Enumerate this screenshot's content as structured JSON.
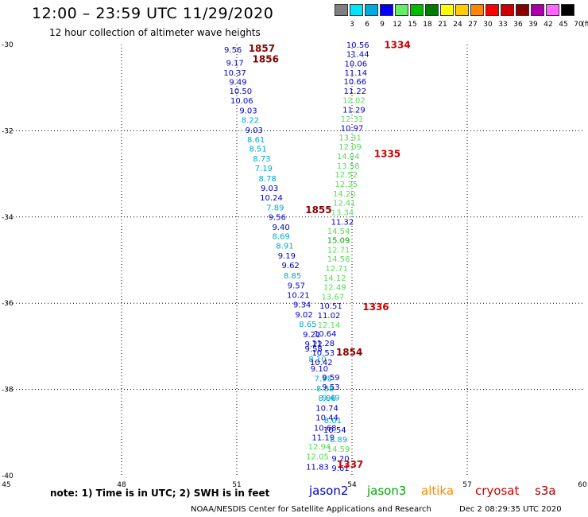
{
  "title": "12:00 – 23:59 UTC 11/29/2020",
  "subtitle": "12 hour collection of altimeter wave heights",
  "legend": {
    "unit": "(ft)",
    "bins": [
      {
        "label": "3",
        "color": "#7f7f7f"
      },
      {
        "label": "6",
        "color": "#00e5ff"
      },
      {
        "label": "9",
        "color": "#00aadd"
      },
      {
        "label": "12",
        "color": "#0000ff"
      },
      {
        "label": "15",
        "color": "#66ee66"
      },
      {
        "label": "18",
        "color": "#00bb00"
      },
      {
        "label": "21",
        "color": "#007a00"
      },
      {
        "label": "24",
        "color": "#ffff00"
      },
      {
        "label": "27",
        "color": "#ffcc00"
      },
      {
        "label": "30",
        "color": "#ff8800"
      },
      {
        "label": "33",
        "color": "#ff0000"
      },
      {
        "label": "36",
        "color": "#cc0000"
      },
      {
        "label": "39",
        "color": "#880000"
      },
      {
        "label": "42",
        "color": "#aa00aa"
      },
      {
        "label": "45",
        "color": "#ff66ff"
      },
      {
        "label": "70",
        "color": "#000000"
      }
    ]
  },
  "axes": {
    "x_ticks": [
      "45",
      "48",
      "51",
      "54",
      "57",
      "60"
    ],
    "y_ticks": [
      "-30",
      "-32",
      "-34",
      "-36",
      "-38",
      "-40"
    ]
  },
  "colors": {
    "jason2": "#0000cc",
    "jason3": "#00aa00",
    "altika": "#ff8800",
    "cryosat": "#cc0000",
    "s3a": "#aa0000",
    "light": "#00aacc",
    "green": "#55dd55",
    "maroon": "#880000"
  },
  "points": [
    {
      "t": "9.56",
      "lon": 50.9,
      "lat": -30.13,
      "c": "jason2"
    },
    {
      "t": "9.17",
      "lon": 50.95,
      "lat": -30.43,
      "c": "jason2"
    },
    {
      "t": "10.37",
      "lon": 50.95,
      "lat": -30.66,
      "c": "jason2"
    },
    {
      "t": "9.49",
      "lon": 51.03,
      "lat": -30.88,
      "c": "jason2"
    },
    {
      "t": "10.50",
      "lon": 51.1,
      "lat": -31.09,
      "c": "jason2"
    },
    {
      "t": "10.06",
      "lon": 51.13,
      "lat": -31.31,
      "c": "jason2"
    },
    {
      "t": "9.03",
      "lon": 51.3,
      "lat": -31.54,
      "c": "jason2"
    },
    {
      "t": "8.22",
      "lon": 51.35,
      "lat": -31.76,
      "c": "light"
    },
    {
      "t": "9.03",
      "lon": 51.45,
      "lat": -31.99,
      "c": "jason2"
    },
    {
      "t": "8.61",
      "lon": 51.5,
      "lat": -32.21,
      "c": "light"
    },
    {
      "t": "8.51",
      "lon": 51.55,
      "lat": -32.43,
      "c": "light"
    },
    {
      "t": "8.73",
      "lon": 51.65,
      "lat": -32.66,
      "c": "light"
    },
    {
      "t": "7.19",
      "lon": 51.7,
      "lat": -32.88,
      "c": "light"
    },
    {
      "t": "8.78",
      "lon": 51.8,
      "lat": -33.12,
      "c": "light"
    },
    {
      "t": "9.03",
      "lon": 51.85,
      "lat": -33.34,
      "c": "jason2"
    },
    {
      "t": "10.24",
      "lon": 51.9,
      "lat": -33.56,
      "c": "jason2"
    },
    {
      "t": "7.89",
      "lon": 52.0,
      "lat": -33.79,
      "c": "light"
    },
    {
      "t": "9.56",
      "lon": 52.05,
      "lat": -34.01,
      "c": "jason2"
    },
    {
      "t": "9.40",
      "lon": 52.15,
      "lat": -34.24,
      "c": "jason2"
    },
    {
      "t": "8.69",
      "lon": 52.15,
      "lat": -34.46,
      "c": "light"
    },
    {
      "t": "8.91",
      "lon": 52.25,
      "lat": -34.68,
      "c": "light"
    },
    {
      "t": "9.19",
      "lon": 52.3,
      "lat": -34.91,
      "c": "jason2"
    },
    {
      "t": "9.62",
      "lon": 52.4,
      "lat": -35.13,
      "c": "jason2"
    },
    {
      "t": "8.85",
      "lon": 52.45,
      "lat": -35.37,
      "c": "light"
    },
    {
      "t": "9.57",
      "lon": 52.55,
      "lat": -35.6,
      "c": "jason2"
    },
    {
      "t": "10.21",
      "lon": 52.6,
      "lat": -35.82,
      "c": "jason2"
    },
    {
      "t": "9.34",
      "lon": 52.7,
      "lat": -36.04,
      "c": "jason2"
    },
    {
      "t": "9.02",
      "lon": 52.75,
      "lat": -36.27,
      "c": "jason2"
    },
    {
      "t": "8.65",
      "lon": 52.85,
      "lat": -36.49,
      "c": "light"
    },
    {
      "t": "9.21",
      "lon": 52.95,
      "lat": -36.73,
      "c": "jason2"
    },
    {
      "t": "9.22",
      "lon": 53.0,
      "lat": -36.96,
      "c": "jason2"
    },
    {
      "t": "9.58",
      "lon": 53.0,
      "lat": -37.07,
      "c": "jason2"
    },
    {
      "t": "8.10",
      "lon": 53.1,
      "lat": -37.31,
      "c": "light"
    },
    {
      "t": "9.10",
      "lon": 53.15,
      "lat": -37.53,
      "c": "jason2"
    },
    {
      "t": "7.95",
      "lon": 53.25,
      "lat": -37.76,
      "c": "light"
    },
    {
      "t": "8.88",
      "lon": 53.3,
      "lat": -37.99,
      "c": "light"
    },
    {
      "t": "8.86",
      "lon": 53.35,
      "lat": -38.21,
      "c": "light"
    },
    {
      "t": "10.74",
      "lon": 53.35,
      "lat": -38.44,
      "c": "jason2"
    },
    {
      "t": "10.44",
      "lon": 53.35,
      "lat": -38.66,
      "c": "jason2"
    },
    {
      "t": "10.68",
      "lon": 53.3,
      "lat": -38.9,
      "c": "jason2"
    },
    {
      "t": "11.19",
      "lon": 53.25,
      "lat": -39.12,
      "c": "jason2"
    },
    {
      "t": "12.94",
      "lon": 53.15,
      "lat": -39.34,
      "c": "green"
    },
    {
      "t": "12.05",
      "lon": 53.1,
      "lat": -39.57,
      "c": "green"
    },
    {
      "t": "11.83",
      "lon": 53.1,
      "lat": -39.81,
      "c": "jason2"
    },
    {
      "t": "10.56",
      "lon": 54.15,
      "lat": -30.02,
      "c": "jason2"
    },
    {
      "t": "11.44",
      "lon": 54.15,
      "lat": -30.23,
      "c": "jason2"
    },
    {
      "t": "10.06",
      "lon": 54.1,
      "lat": -30.45,
      "c": "jason2"
    },
    {
      "t": "11.14",
      "lon": 54.1,
      "lat": -30.66,
      "c": "jason2"
    },
    {
      "t": "10.66",
      "lon": 54.08,
      "lat": -30.87,
      "c": "jason2"
    },
    {
      "t": "11.22",
      "lon": 54.08,
      "lat": -31.09,
      "c": "jason2"
    },
    {
      "t": "12.02",
      "lon": 54.05,
      "lat": -31.3,
      "c": "green"
    },
    {
      "t": "11.29",
      "lon": 54.05,
      "lat": -31.52,
      "c": "jason2"
    },
    {
      "t": "12.31",
      "lon": 54.0,
      "lat": -31.73,
      "c": "green"
    },
    {
      "t": "10.97",
      "lon": 54.0,
      "lat": -31.95,
      "c": "jason2"
    },
    {
      "t": "13.31",
      "lon": 53.95,
      "lat": -32.17,
      "c": "green"
    },
    {
      "t": "12.09",
      "lon": 53.95,
      "lat": -32.38,
      "c": "green"
    },
    {
      "t": "14.04",
      "lon": 53.9,
      "lat": -32.6,
      "c": "green"
    },
    {
      "t": "13.58",
      "lon": 53.9,
      "lat": -32.82,
      "c": "green"
    },
    {
      "t": "12.52",
      "lon": 53.85,
      "lat": -33.03,
      "c": "green"
    },
    {
      "t": "12.35",
      "lon": 53.85,
      "lat": -33.25,
      "c": "green"
    },
    {
      "t": "14.20",
      "lon": 53.8,
      "lat": -33.47,
      "c": "green"
    },
    {
      "t": "12.41",
      "lon": 53.8,
      "lat": -33.68,
      "c": "green"
    },
    {
      "t": "13.34",
      "lon": 53.75,
      "lat": -33.9,
      "c": "green"
    },
    {
      "t": "11.32",
      "lon": 53.75,
      "lat": -34.12,
      "c": "jason2"
    },
    {
      "t": "14.54",
      "lon": 53.65,
      "lat": -34.34,
      "c": "green"
    },
    {
      "t": "15.09",
      "lon": 53.65,
      "lat": -34.55,
      "c": "jason3"
    },
    {
      "t": "12.71",
      "lon": 53.65,
      "lat": -34.77,
      "c": "green"
    },
    {
      "t": "14.56",
      "lon": 53.65,
      "lat": -34.98,
      "c": "green"
    },
    {
      "t": "12.71",
      "lon": 53.6,
      "lat": -35.2,
      "c": "green"
    },
    {
      "t": "14.12",
      "lon": 53.55,
      "lat": -35.42,
      "c": "green"
    },
    {
      "t": "12.49",
      "lon": 53.55,
      "lat": -35.64,
      "c": "green"
    },
    {
      "t": "13.67",
      "lon": 53.5,
      "lat": -35.86,
      "c": "green"
    },
    {
      "t": "10.51",
      "lon": 53.45,
      "lat": -36.07,
      "c": "jason2"
    },
    {
      "t": "11.02",
      "lon": 53.4,
      "lat": -36.29,
      "c": "jason2"
    },
    {
      "t": "12.14",
      "lon": 53.4,
      "lat": -36.51,
      "c": "green"
    },
    {
      "t": "10.64",
      "lon": 53.3,
      "lat": -36.72,
      "c": "jason2"
    },
    {
      "t": "11.28",
      "lon": 53.25,
      "lat": -36.94,
      "c": "jason2"
    },
    {
      "t": "10.53",
      "lon": 53.25,
      "lat": -37.16,
      "c": "jason2"
    },
    {
      "t": "10.42",
      "lon": 53.2,
      "lat": -37.38,
      "c": "jason2"
    },
    {
      "t": "9.59",
      "lon": 53.45,
      "lat": -37.73,
      "c": "jason2"
    },
    {
      "t": "9.53",
      "lon": 53.45,
      "lat": -37.95,
      "c": "jason2"
    },
    {
      "t": "9.49",
      "lon": 53.45,
      "lat": -38.2,
      "c": "light"
    },
    {
      "t": "8.01",
      "lon": 53.5,
      "lat": -38.73,
      "c": "light"
    },
    {
      "t": "10.54",
      "lon": 53.55,
      "lat": -38.95,
      "c": "jason2"
    },
    {
      "t": "8.89",
      "lon": 53.65,
      "lat": -39.17,
      "c": "light"
    },
    {
      "t": "14.59",
      "lon": 53.65,
      "lat": -39.39,
      "c": "green"
    },
    {
      "t": "9.20",
      "lon": 53.7,
      "lat": -39.61,
      "c": "jason2"
    },
    {
      "t": "9.61",
      "lon": 53.7,
      "lat": -39.83,
      "c": "jason2"
    }
  ],
  "pass_labels": [
    {
      "t": "1857",
      "lon": 51.65,
      "lat": -30.1,
      "c": "maroon"
    },
    {
      "t": "1856",
      "lon": 51.75,
      "lat": -30.35,
      "c": "maroon"
    },
    {
      "t": "1855",
      "lon": 53.13,
      "lat": -33.85,
      "c": "maroon"
    },
    {
      "t": "1854",
      "lon": 53.93,
      "lat": -37.15,
      "c": "maroon"
    },
    {
      "t": "1334",
      "lon": 55.18,
      "lat": -30.02,
      "c": "cryosat"
    },
    {
      "t": "1335",
      "lon": 54.92,
      "lat": -32.55,
      "c": "cryosat"
    },
    {
      "t": "1336",
      "lon": 54.62,
      "lat": -36.1,
      "c": "cryosat"
    },
    {
      "t": "1337",
      "lon": 53.95,
      "lat": -39.75,
      "c": "cryosat"
    }
  ],
  "footer": {
    "note": "note:  1) Time is in UTC; 2) SWH is in feet",
    "satellites": [
      "jason2",
      "jason3",
      "altika",
      "cryosat",
      "s3a"
    ],
    "credit": "NOAA/NESDIS Center for Satellite Applications and Research",
    "timestamp": "Dec  2 08:29:35 UTC 2020"
  }
}
